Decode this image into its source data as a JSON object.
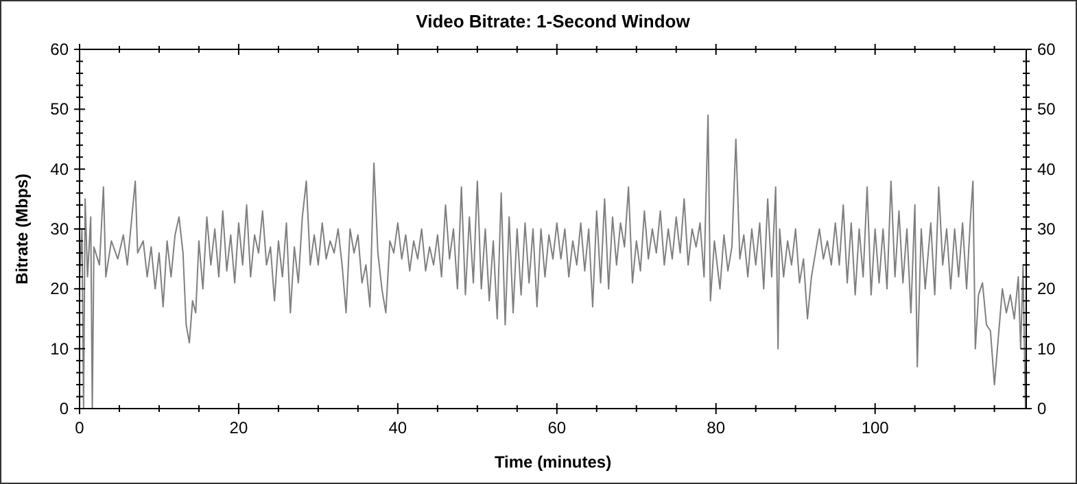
{
  "chart_data": {
    "type": "line",
    "title": "Video Bitrate: 1-Second Window",
    "xlabel": "Time (minutes)",
    "ylabel": "Bitrate (Mbps)",
    "xlim": [
      0,
      119
    ],
    "ylim": [
      0,
      60
    ],
    "y2lim": [
      0,
      60
    ],
    "xticks": [
      0,
      {
        "value": 5,
        "label": null
      },
      {
        "value": 10,
        "label": null
      },
      {
        "value": 15,
        "label": null
      },
      20,
      {
        "value": 25,
        "label": null
      },
      {
        "value": 30,
        "label": null
      },
      {
        "value": 35,
        "label": null
      },
      40,
      {
        "value": 45,
        "label": null
      },
      {
        "value": 50,
        "label": null
      },
      {
        "value": 55,
        "label": null
      },
      60,
      {
        "value": 65,
        "label": null
      },
      {
        "value": 70,
        "label": null
      },
      {
        "value": 75,
        "label": null
      },
      80,
      {
        "value": 85,
        "label": null
      },
      {
        "value": 90,
        "label": null
      },
      {
        "value": 95,
        "label": null
      },
      100,
      {
        "value": 105,
        "label": null
      },
      {
        "value": 110,
        "label": null
      },
      {
        "value": 115,
        "label": null
      }
    ],
    "yticks": [
      0,
      {
        "value": 2,
        "label": null
      },
      {
        "value": 4,
        "label": null
      },
      {
        "value": 6,
        "label": null
      },
      {
        "value": 8,
        "label": null
      },
      10,
      {
        "value": 12,
        "label": null
      },
      {
        "value": 14,
        "label": null
      },
      {
        "value": 16,
        "label": null
      },
      {
        "value": 18,
        "label": null
      },
      20,
      {
        "value": 22,
        "label": null
      },
      {
        "value": 24,
        "label": null
      },
      {
        "value": 26,
        "label": null
      },
      {
        "value": 28,
        "label": null
      },
      30,
      {
        "value": 32,
        "label": null
      },
      {
        "value": 34,
        "label": null
      },
      {
        "value": 36,
        "label": null
      },
      {
        "value": 38,
        "label": null
      },
      40,
      {
        "value": 42,
        "label": null
      },
      {
        "value": 44,
        "label": null
      },
      {
        "value": 46,
        "label": null
      },
      {
        "value": 48,
        "label": null
      },
      50,
      {
        "value": 52,
        "label": null
      },
      {
        "value": 54,
        "label": null
      },
      {
        "value": 56,
        "label": null
      },
      {
        "value": 58,
        "label": null
      },
      60
    ],
    "y2ticks": [
      0,
      {
        "value": 2,
        "label": null
      },
      {
        "value": 4,
        "label": null
      },
      {
        "value": 6,
        "label": null
      },
      {
        "value": 8,
        "label": null
      },
      10,
      {
        "value": 12,
        "label": null
      },
      {
        "value": 14,
        "label": null
      },
      {
        "value": 16,
        "label": null
      },
      {
        "value": 18,
        "label": null
      },
      20,
      {
        "value": 22,
        "label": null
      },
      {
        "value": 24,
        "label": null
      },
      {
        "value": 26,
        "label": null
      },
      {
        "value": 28,
        "label": null
      },
      30,
      {
        "value": 32,
        "label": null
      },
      {
        "value": 34,
        "label": null
      },
      {
        "value": 36,
        "label": null
      },
      {
        "value": 38,
        "label": null
      },
      40,
      {
        "value": 42,
        "label": null
      },
      {
        "value": 44,
        "label": null
      },
      {
        "value": 46,
        "label": null
      },
      {
        "value": 48,
        "label": null
      },
      50,
      {
        "value": 52,
        "label": null
      },
      {
        "value": 54,
        "label": null
      },
      {
        "value": 56,
        "label": null
      },
      {
        "value": 58,
        "label": null
      },
      60
    ],
    "grid": false,
    "marker": "none",
    "line_style": "solid",
    "series": [
      {
        "color": "#7f7f7f",
        "x": [
          0,
          0.3,
          0.5,
          0.7,
          1.0,
          1.4,
          1.6,
          1.8,
          2.5,
          3.0,
          3.3,
          4,
          4.8,
          5.5,
          6,
          6.5,
          7,
          7.3,
          8,
          8.5,
          9,
          9.5,
          10,
          10.5,
          11,
          11.5,
          12,
          12.5,
          13,
          13.4,
          13.8,
          14.2,
          14.6,
          15,
          15.5,
          16,
          16.5,
          17,
          17.5,
          18,
          18.5,
          19,
          19.5,
          20,
          20.5,
          21,
          21.5,
          22,
          22.5,
          23,
          23.5,
          24,
          24.5,
          25,
          25.5,
          26,
          26.5,
          27,
          27.5,
          28,
          28.5,
          29,
          29.5,
          30,
          30.5,
          31,
          31.5,
          32,
          32.5,
          33,
          33.5,
          34,
          34.5,
          35,
          35.5,
          36,
          36.5,
          37,
          37.5,
          38,
          38.5,
          39,
          39.5,
          40,
          40.5,
          41,
          41.5,
          42,
          42.5,
          43,
          43.5,
          44,
          44.5,
          45,
          45.5,
          46,
          46.5,
          47,
          47.5,
          48,
          48.5,
          49,
          49.5,
          50,
          50.5,
          51,
          51.5,
          52,
          52.5,
          53,
          53.5,
          54,
          54.5,
          55,
          55.5,
          56,
          56.5,
          57,
          57.5,
          58,
          58.5,
          59,
          59.5,
          60,
          60.5,
          61,
          61.5,
          62,
          62.5,
          63,
          63.5,
          64,
          64.5,
          65,
          65.5,
          66,
          66.5,
          67,
          67.5,
          68,
          68.5,
          69,
          69.5,
          70,
          70.5,
          71,
          71.5,
          72,
          72.5,
          73,
          73.5,
          74,
          74.5,
          75,
          75.5,
          76,
          76.5,
          77,
          77.5,
          78,
          78.5,
          79,
          79.3,
          79.8,
          80.5,
          81,
          81.5,
          82,
          82.5,
          83,
          83.5,
          84,
          84.5,
          85,
          85.5,
          86,
          86.5,
          87,
          87.5,
          87.8,
          88,
          88.5,
          89,
          89.5,
          90,
          90.5,
          91,
          91.5,
          92,
          92.5,
          93,
          93.5,
          94,
          94.5,
          95,
          95.5,
          96,
          96.5,
          97,
          97.5,
          98,
          98.5,
          99,
          99.5,
          100,
          100.5,
          101,
          101.5,
          102,
          102.5,
          103,
          103.5,
          104,
          104.5,
          105,
          105.3,
          105.8,
          106.3,
          107,
          107.5,
          108,
          108.5,
          109,
          109.5,
          110,
          110.5,
          111,
          111.5,
          112,
          112.3,
          112.6,
          113,
          113.5,
          114,
          114.5,
          115,
          115.5,
          116,
          116.5,
          117,
          117.5,
          118,
          118.3,
          118.6,
          118.9
        ],
        "values": [
          22,
          30,
          0,
          35,
          22,
          32,
          0,
          27,
          24,
          37,
          22,
          28,
          25,
          29,
          24,
          31,
          38,
          26,
          28,
          22,
          27,
          20,
          26,
          17,
          28,
          22,
          29,
          32,
          26,
          14,
          11,
          18,
          16,
          28,
          20,
          32,
          24,
          30,
          22,
          33,
          23,
          29,
          21,
          31,
          24,
          34,
          22,
          29,
          26,
          33,
          24,
          27,
          18,
          28,
          22,
          31,
          16,
          27,
          21,
          32,
          38,
          24,
          29,
          24,
          31,
          25,
          28,
          26,
          30,
          24,
          16,
          30,
          26,
          29,
          21,
          24,
          17,
          41,
          26,
          20,
          16,
          28,
          26,
          31,
          25,
          29,
          23,
          28,
          25,
          30,
          23,
          27,
          24,
          29,
          22,
          34,
          25,
          30,
          20,
          37,
          19,
          32,
          21,
          38,
          20,
          30,
          18,
          28,
          15,
          36,
          14,
          32,
          16,
          30,
          19,
          31,
          21,
          30,
          17,
          30,
          22,
          29,
          25,
          31,
          25,
          30,
          22,
          28,
          24,
          31,
          23,
          30,
          17,
          33,
          21,
          35,
          20,
          32,
          24,
          31,
          27,
          37,
          21,
          28,
          23,
          33,
          25,
          30,
          26,
          33,
          24,
          30,
          25,
          32,
          26,
          35,
          24,
          30,
          27,
          31,
          22,
          49,
          18,
          28,
          20,
          29,
          23,
          27,
          45,
          25,
          29,
          22,
          30,
          24,
          31,
          20,
          35,
          22,
          37,
          10,
          30,
          22,
          28,
          24,
          30,
          21,
          25,
          15,
          22,
          26,
          30,
          25,
          28,
          24,
          31,
          24,
          34,
          21,
          31,
          19,
          30,
          22,
          37,
          19,
          30,
          21,
          30,
          20,
          38,
          22,
          33,
          21,
          30,
          16,
          34,
          7,
          30,
          20,
          31,
          19,
          37,
          24,
          30,
          20,
          30,
          22,
          31,
          20,
          32,
          38,
          10,
          19,
          21,
          14,
          13,
          4,
          12,
          20,
          16,
          19,
          15,
          22,
          10,
          24,
          0
        ]
      }
    ]
  }
}
